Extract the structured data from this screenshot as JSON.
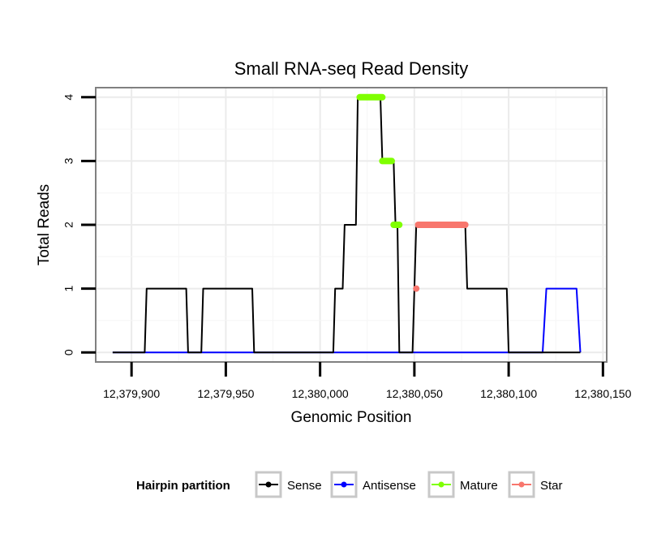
{
  "chart_data": {
    "type": "line",
    "title": "Small RNA-seq Read Density",
    "xlabel": "Genomic Position",
    "ylabel": "Total Reads",
    "xlim": [
      12379881,
      12380152
    ],
    "ylim": [
      -0.15,
      4.15
    ],
    "xticks": [
      12379900,
      12379950,
      12380000,
      12380050,
      12380100,
      12380150
    ],
    "xtick_labels": [
      "12,379,900",
      "12,379,950",
      "12,380,000",
      "12,380,050",
      "12,380,100",
      "12,380,150"
    ],
    "yticks": [
      0,
      1,
      2,
      3,
      4
    ],
    "ytick_labels": [
      "0",
      "1",
      "2",
      "3",
      "4"
    ],
    "grid": true,
    "legend": {
      "title": "Hairpin partition",
      "position": "bottom",
      "entries": [
        "Sense",
        "Antisense",
        "Mature",
        "Star"
      ]
    },
    "series": [
      {
        "name": "Sense",
        "color": "#000000",
        "style": "line",
        "x": [
          12379890,
          12379907,
          12379908,
          12379929,
          12379930,
          12379937,
          12379938,
          12379964,
          12379965,
          12380007,
          12380008,
          12380012,
          12380013,
          12380019,
          12380020,
          12380032,
          12380033,
          12380039,
          12380040,
          12380041,
          12380042,
          12380049,
          12380051,
          12380077,
          12380078,
          12380099,
          12380100,
          12380138
        ],
        "y": [
          0,
          0,
          1,
          1,
          0,
          0,
          1,
          1,
          0,
          0,
          1,
          1,
          2,
          2,
          4,
          4,
          3,
          3,
          2,
          2,
          0,
          0,
          2,
          2,
          1,
          1,
          0,
          0
        ]
      },
      {
        "name": "Antisense",
        "color": "#0000ff",
        "style": "line",
        "x": [
          12379890,
          12380118,
          12380120,
          12380136,
          12380138
        ],
        "y": [
          0,
          0,
          1,
          1,
          0
        ]
      },
      {
        "name": "Mature",
        "color": "#7fff00",
        "style": "points",
        "segments": [
          {
            "x": [
              12380021,
              12380033
            ],
            "y": 4
          },
          {
            "x": [
              12380033,
              12380038
            ],
            "y": 3
          },
          {
            "x": [
              12380039,
              12380042
            ],
            "y": 2
          }
        ]
      },
      {
        "name": "Star",
        "color": "#f8766d",
        "style": "points",
        "segments": [
          {
            "x": [
              12380051,
              12380051
            ],
            "y": 1
          },
          {
            "x": [
              12380052,
              12380077
            ],
            "y": 2
          }
        ]
      }
    ]
  }
}
